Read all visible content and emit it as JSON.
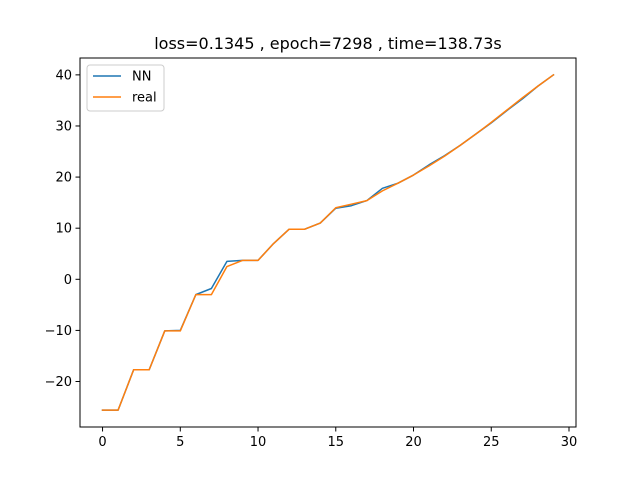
{
  "chart_data": {
    "type": "line",
    "title": "loss=0.1345 , epoch=7298 , time=138.73s",
    "xlabel": "",
    "ylabel": "",
    "xlim": [
      -1.45,
      30.45
    ],
    "ylim": [
      -28.9,
      43.3
    ],
    "x_ticks": [
      0,
      5,
      10,
      15,
      20,
      25,
      30
    ],
    "y_ticks": [
      -20,
      -10,
      0,
      10,
      20,
      30,
      40
    ],
    "x_tick_labels": [
      "0",
      "5",
      "10",
      "15",
      "20",
      "25",
      "30"
    ],
    "y_tick_labels": [
      "−20",
      "−10",
      "0",
      "10",
      "20",
      "30",
      "40"
    ],
    "grid": false,
    "legend_position": "upper-left",
    "x": [
      0,
      1,
      2,
      3,
      4,
      5,
      6,
      7,
      8,
      9,
      10,
      11,
      12,
      13,
      14,
      15,
      16,
      17,
      18,
      19,
      20,
      21,
      22,
      23,
      24,
      25,
      26,
      27,
      28,
      29
    ],
    "series": [
      {
        "name": "NN",
        "color": "#1f77b4",
        "values": [
          -25.6,
          -25.6,
          -17.7,
          -17.7,
          -10.1,
          -10.0,
          -3.0,
          -1.8,
          3.5,
          3.7,
          3.7,
          7.0,
          9.8,
          9.8,
          11.0,
          13.9,
          14.4,
          15.4,
          17.8,
          18.8,
          20.4,
          22.4,
          24.2,
          26.2,
          28.4,
          30.6,
          33.0,
          35.3,
          37.8,
          40.0
        ]
      },
      {
        "name": "real",
        "color": "#ff7f0e",
        "values": [
          -25.6,
          -25.6,
          -17.7,
          -17.7,
          -10.1,
          -10.1,
          -3.0,
          -3.0,
          2.5,
          3.7,
          3.7,
          7.0,
          9.8,
          9.8,
          11.0,
          14.0,
          14.7,
          15.4,
          17.3,
          18.8,
          20.4,
          22.2,
          24.1,
          26.2,
          28.4,
          30.7,
          33.1,
          35.5,
          37.8,
          40.0
        ]
      }
    ]
  }
}
